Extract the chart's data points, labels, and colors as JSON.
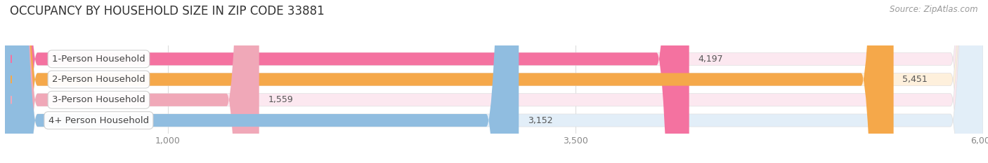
{
  "title": "OCCUPANCY BY HOUSEHOLD SIZE IN ZIP CODE 33881",
  "source": "Source: ZipAtlas.com",
  "categories": [
    "1-Person Household",
    "2-Person Household",
    "3-Person Household",
    "4+ Person Household"
  ],
  "values": [
    4197,
    5451,
    1559,
    3152
  ],
  "bar_colors": [
    "#F472A0",
    "#F5A84A",
    "#F0A8B8",
    "#90BDE0"
  ],
  "bg_colors": [
    "#FCE8F0",
    "#FEF0DC",
    "#FCE8F0",
    "#E2EEF8"
  ],
  "label_dot_colors": [
    "#F472A0",
    "#F5A84A",
    "#F0A8B8",
    "#90BDE0"
  ],
  "xlim_data": [
    0,
    6000
  ],
  "xticks": [
    1000,
    3500,
    6000
  ],
  "xticklabels": [
    "1,000",
    "3,500",
    "6,000"
  ],
  "title_fontsize": 12,
  "source_fontsize": 8.5,
  "bar_height": 0.62,
  "label_fontsize": 9.5,
  "value_fontsize": 9,
  "figsize": [
    14.06,
    2.33
  ],
  "dpi": 100
}
